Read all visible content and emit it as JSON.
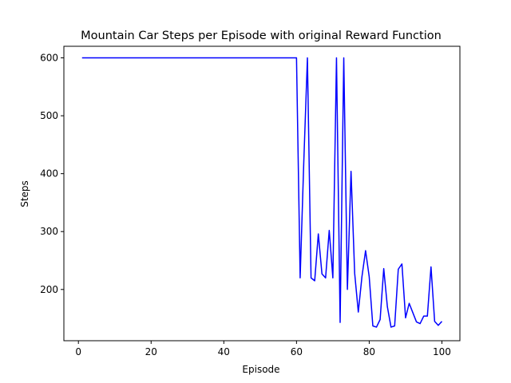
{
  "chart_data": {
    "type": "line",
    "title": "Mountain Car Steps per Episode with original Reward Function",
    "xlabel": "Episode",
    "ylabel": "Steps",
    "xlim": [
      -4.0,
      104.95
    ],
    "ylim": [
      111.5,
      620.0
    ],
    "x_ticks": [
      0,
      20,
      40,
      60,
      80,
      100
    ],
    "y_ticks": [
      200,
      300,
      400,
      500,
      600
    ],
    "grid": false,
    "legend": "none",
    "series": [
      {
        "color": "#0000ff",
        "x": [
          1,
          2,
          3,
          4,
          5,
          6,
          7,
          8,
          9,
          10,
          11,
          12,
          13,
          14,
          15,
          16,
          17,
          18,
          19,
          20,
          21,
          22,
          23,
          24,
          25,
          26,
          27,
          28,
          29,
          30,
          31,
          32,
          33,
          34,
          35,
          36,
          37,
          38,
          39,
          40,
          41,
          42,
          43,
          44,
          45,
          46,
          47,
          48,
          49,
          50,
          51,
          52,
          53,
          54,
          55,
          56,
          57,
          58,
          59,
          60,
          61,
          62,
          63,
          64,
          65,
          66,
          67,
          68,
          69,
          70,
          71,
          72,
          73,
          74,
          75,
          76,
          77,
          78,
          79,
          80,
          81,
          82,
          83,
          84,
          85,
          86,
          87,
          88,
          89,
          90,
          91,
          92,
          93,
          94,
          95,
          96,
          97,
          98,
          99,
          100
        ],
        "y": [
          600,
          600,
          600,
          600,
          600,
          600,
          600,
          600,
          600,
          600,
          600,
          600,
          600,
          600,
          600,
          600,
          600,
          600,
          600,
          600,
          600,
          600,
          600,
          600,
          600,
          600,
          600,
          600,
          600,
          600,
          600,
          600,
          600,
          600,
          600,
          600,
          600,
          600,
          600,
          600,
          600,
          600,
          600,
          600,
          600,
          600,
          600,
          600,
          600,
          600,
          600,
          600,
          600,
          600,
          600,
          600,
          600,
          600,
          600,
          600,
          220,
          420,
          600,
          220,
          215,
          296,
          227,
          220,
          302,
          220,
          600,
          143,
          600,
          200,
          404,
          228,
          161,
          222,
          267,
          222,
          137,
          135,
          148,
          236,
          170,
          135,
          137,
          235,
          244,
          151,
          176,
          160,
          144,
          141,
          154,
          154,
          239,
          145,
          138,
          145
        ]
      }
    ]
  }
}
